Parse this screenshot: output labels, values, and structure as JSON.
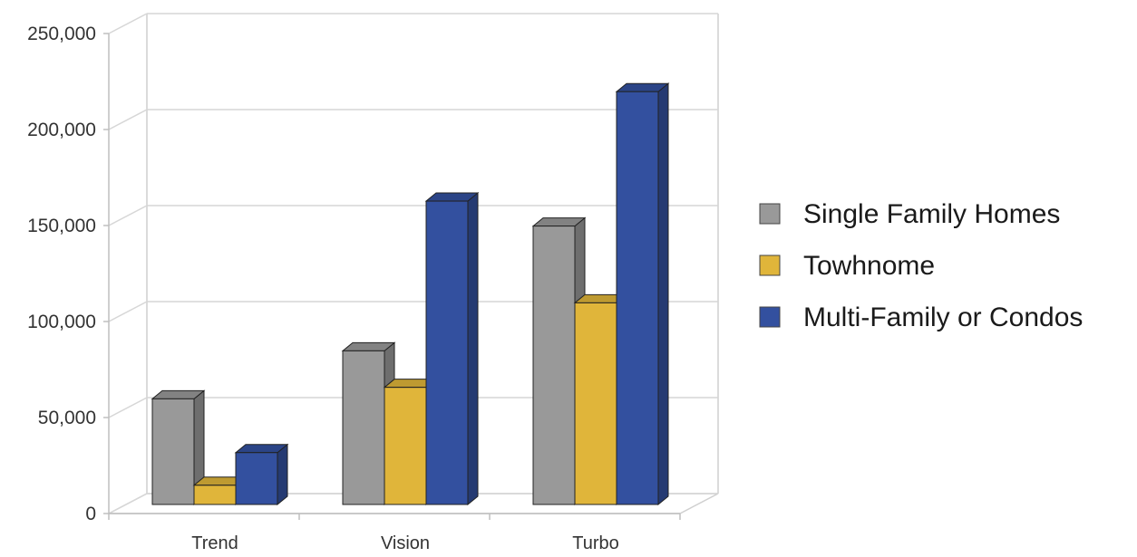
{
  "chart_data": {
    "type": "bar",
    "style": "3d-clustered-column",
    "categories": [
      "Trend",
      "Vision",
      "Turbo"
    ],
    "series": [
      {
        "name": "Single Family Homes",
        "color": "#999999",
        "values": [
          55000,
          80000,
          145000
        ]
      },
      {
        "name": "Towhnome",
        "color": "#e0b53a",
        "values": [
          10000,
          61000,
          105000
        ]
      },
      {
        "name": "Multi-Family or Condos",
        "color": "#33509f",
        "values": [
          27000,
          158000,
          215000
        ]
      }
    ],
    "ylim": [
      0,
      250000
    ],
    "yticks": [
      0,
      50000,
      100000,
      150000,
      200000,
      250000
    ],
    "ytick_labels": [
      "0",
      "50,000",
      "100,000",
      "150,000",
      "200,000",
      "250,000"
    ],
    "grid": true,
    "legend_position": "right"
  }
}
